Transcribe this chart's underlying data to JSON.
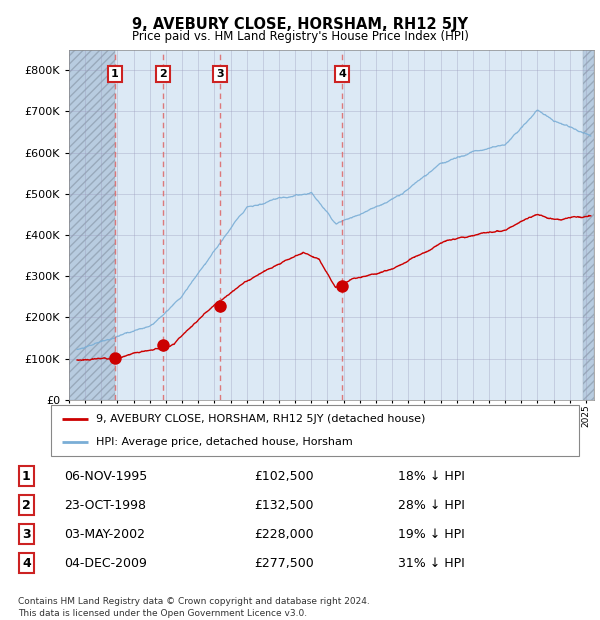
{
  "title": "9, AVEBURY CLOSE, HORSHAM, RH12 5JY",
  "subtitle": "Price paid vs. HM Land Registry's House Price Index (HPI)",
  "xlim_start": 1993.0,
  "xlim_end": 2025.5,
  "ylim": [
    0,
    850000
  ],
  "yticks": [
    0,
    100000,
    200000,
    300000,
    400000,
    500000,
    600000,
    700000,
    800000
  ],
  "ytick_labels": [
    "£0",
    "£100K",
    "£200K",
    "£300K",
    "£400K",
    "£500K",
    "£600K",
    "£700K",
    "£800K"
  ],
  "sale_dates": [
    1995.847,
    1998.81,
    2002.336,
    2009.923
  ],
  "sale_prices": [
    102500,
    132500,
    228000,
    277500
  ],
  "sale_labels": [
    "1",
    "2",
    "3",
    "4"
  ],
  "legend_red": "9, AVEBURY CLOSE, HORSHAM, RH12 5JY (detached house)",
  "legend_blue": "HPI: Average price, detached house, Horsham",
  "table_rows": [
    {
      "num": "1",
      "date": "06-NOV-1995",
      "price": "£102,500",
      "pct": "18% ↓ HPI"
    },
    {
      "num": "2",
      "date": "23-OCT-1998",
      "price": "£132,500",
      "pct": "28% ↓ HPI"
    },
    {
      "num": "3",
      "date": "03-MAY-2002",
      "price": "£228,000",
      "pct": "19% ↓ HPI"
    },
    {
      "num": "4",
      "date": "04-DEC-2009",
      "price": "£277,500",
      "pct": "31% ↓ HPI"
    }
  ],
  "footnote": "Contains HM Land Registry data © Crown copyright and database right 2024.\nThis data is licensed under the Open Government Licence v3.0.",
  "background_chart": "#dce9f5",
  "background_hatch_color": "#b8cce0",
  "grid_color": "#9999bb",
  "red_line_color": "#cc0000",
  "blue_line_color": "#7aaed6",
  "dashed_line_color": "#dd6666"
}
